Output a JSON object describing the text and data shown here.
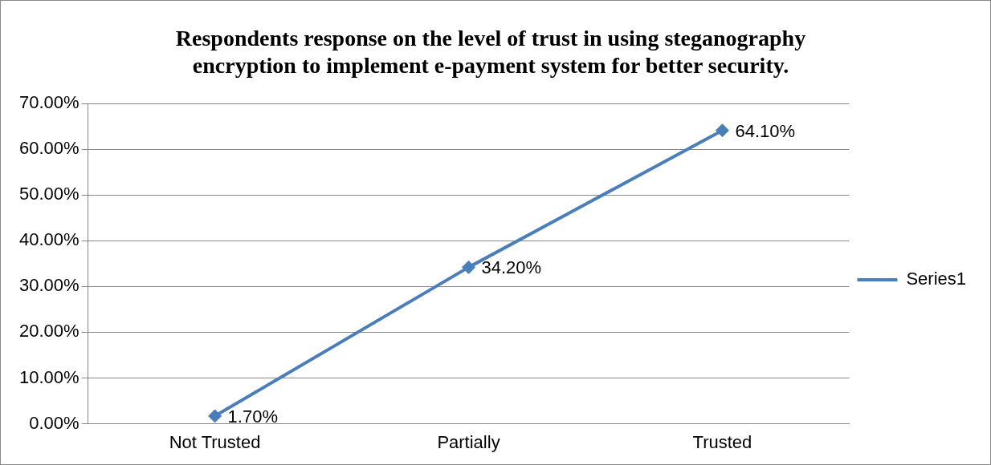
{
  "chart_data": {
    "type": "line",
    "title": "Respondents response on the level of trust in using steganography encryption to implement e-payment system for better security.",
    "categories": [
      "Not Trusted",
      "Partially",
      "Trusted"
    ],
    "series": [
      {
        "name": "Series1",
        "color": "#4a7ebb",
        "values": [
          1.7,
          34.2,
          64.1
        ]
      }
    ],
    "value_labels": [
      "1.70%",
      "34.20%",
      "64.10%"
    ],
    "ylim": [
      0,
      70
    ],
    "yticks": [
      {
        "value": 0,
        "label": "0.00%"
      },
      {
        "value": 10,
        "label": "10.00%"
      },
      {
        "value": 20,
        "label": "20.00%"
      },
      {
        "value": 30,
        "label": "30.00%"
      },
      {
        "value": 40,
        "label": "40.00%"
      },
      {
        "value": 50,
        "label": "50.00%"
      },
      {
        "value": 60,
        "label": "60.00%"
      },
      {
        "value": 70,
        "label": "70.00%"
      }
    ],
    "grid": "y",
    "legend": "right",
    "marker": "diamond",
    "line_style": "solid"
  }
}
